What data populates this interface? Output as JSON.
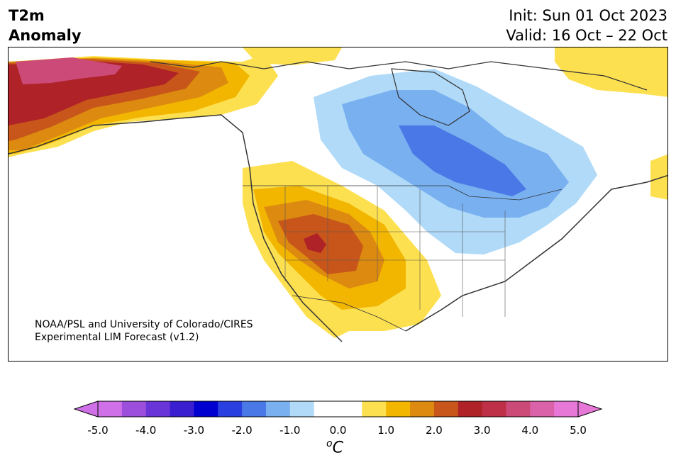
{
  "header": {
    "title_line1": "T2m",
    "title_line2": "Anomaly",
    "init_text": "Init: Sun 01 Oct 2023",
    "valid_text": "Valid: 16 Oct – 22 Oct"
  },
  "credit": {
    "line1": "NOAA/PSL and University of Colorado/CIRES",
    "line2": "Experimental LIM Forecast (v1.2)"
  },
  "colorbar": {
    "unit": "C",
    "unit_superscript": "o",
    "extend": "both",
    "colors": [
      "#d070e8",
      "#9c4fdc",
      "#6a35d8",
      "#3a1fd0",
      "#0000d0",
      "#2a3fe0",
      "#4a78e6",
      "#78b0f0",
      "#b0daf8",
      "#ffffff",
      "#ffffff",
      "#fde050",
      "#f2b600",
      "#dd8a10",
      "#c8561a",
      "#ae2228",
      "#bd3048",
      "#cc4a78",
      "#da62a8",
      "#e878d8"
    ],
    "ticks": [
      "-5.0",
      "-4.0",
      "-3.0",
      "-2.0",
      "-1.0",
      "0.0",
      "1.0",
      "2.0",
      "3.0",
      "4.0",
      "5.0"
    ],
    "tick_values": [
      -5,
      -4,
      -3,
      -2,
      -1,
      0,
      1,
      2,
      3,
      4,
      5
    ],
    "range": [
      -5,
      5
    ],
    "step": 0.5
  },
  "anomaly_regions": [
    {
      "name": "alaska",
      "max_anomaly": 4.0
    },
    {
      "name": "northwest-canada",
      "max_anomaly": 2.0
    },
    {
      "name": "us-southwest",
      "max_anomaly": 3.0
    },
    {
      "name": "great-lakes-central-canada",
      "min_anomaly": -2.0
    },
    {
      "name": "greenland-coast",
      "max_anomaly": 1.0
    }
  ]
}
